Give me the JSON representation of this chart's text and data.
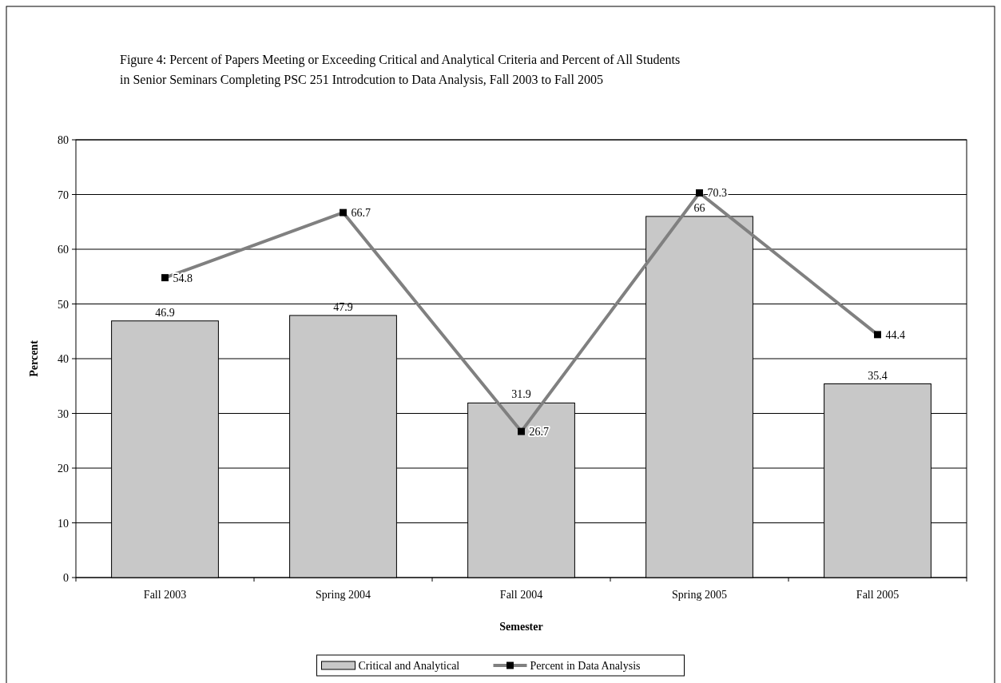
{
  "chart_data": {
    "type": "bar",
    "title": "Figure 4:  Percent of Papers Meeting or Exceeding Critical and Analytical Criteria and Percent of All Students\nin Senior Seminars Completing PSC 251 Introdcution to Data Analysis, Fall 2003 to Fall 2005",
    "xlabel": "Semester",
    "ylabel": "Percent",
    "categories": [
      "Fall 2003",
      "Spring 2004",
      "Fall 2004",
      "Spring 2005",
      "Fall 2005"
    ],
    "series": [
      {
        "name": "Critical and Analytical",
        "color": "#c8c8c8",
        "values": [
          46.9,
          47.9,
          31.9,
          66,
          35.4
        ]
      },
      {
        "name": "Percent in Data Analysis",
        "type": "line",
        "color": "#808080",
        "values": [
          54.8,
          66.7,
          26.7,
          70.3,
          44.4
        ]
      }
    ],
    "ylim": [
      0,
      80
    ],
    "yticks": [
      0,
      10,
      20,
      30,
      40,
      50,
      60,
      70,
      80
    ],
    "grid": "y",
    "legend": "bottom",
    "marker": "square",
    "data_labels": true
  }
}
